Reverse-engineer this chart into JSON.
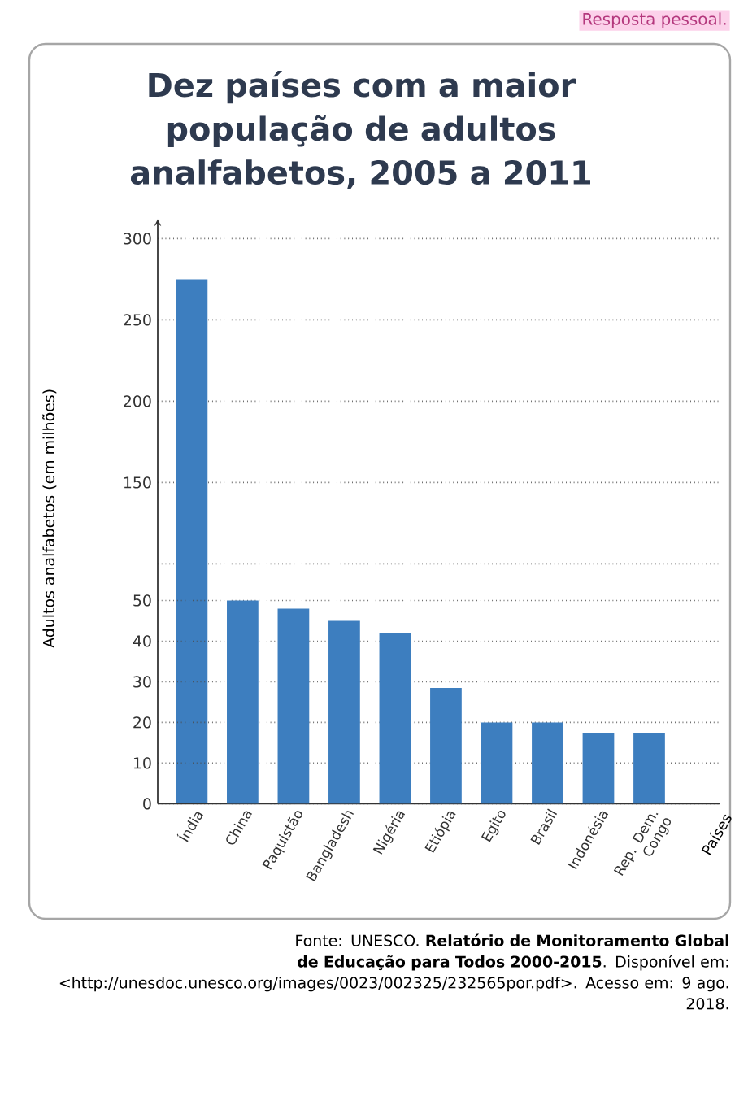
{
  "chart_data": [
    {
      "type": "bar",
      "title": "Dez países com a maior população de adultos analfabetos, 2005 a 2011",
      "ylabel": "Adultos analfabetos (em milhões)",
      "categories": [
        null,
        null,
        null,
        null,
        null,
        null,
        null,
        null,
        null,
        null
      ],
      "values": [
        275,
        null,
        null,
        null,
        null,
        null,
        null,
        null,
        null,
        null
      ],
      "color": "#3d7ebf",
      "ylim": [
        100,
        300
      ],
      "yticks": [
        {
          "value": 100,
          "label": null
        },
        150,
        200,
        250,
        300
      ],
      "grid": "y",
      "tick_labels": "y",
      "annotations": [
        "Resposta pessoal.",
        "Fonte: UNESCO. **Relatório de Monitoramento Global de Educação para Todos 2000-2015**. Disponível em: <http://unesdoc.unesco.org/images/0023/002325/232565por.pdf>. Acesso em: 9 ago. 2018."
      ]
    },
    {
      "type": "bar",
      "xlabel": "Países",
      "categories": [
        "Índia",
        "China",
        "Paquistão",
        "Bangladesh",
        "Nigéria",
        "Etiópia",
        "Egito",
        "Brasil",
        "Indonésia",
        "Rep. Dem. Congo"
      ],
      "values": [
        null,
        50,
        48,
        45,
        42,
        28.5,
        20,
        20,
        17.5,
        17.5
      ],
      "color": "#3d7ebf",
      "ylim": [
        0,
        59
      ],
      "yticks": [
        0,
        10,
        20,
        30,
        40,
        50
      ],
      "grid": "y"
    }
  ]
}
